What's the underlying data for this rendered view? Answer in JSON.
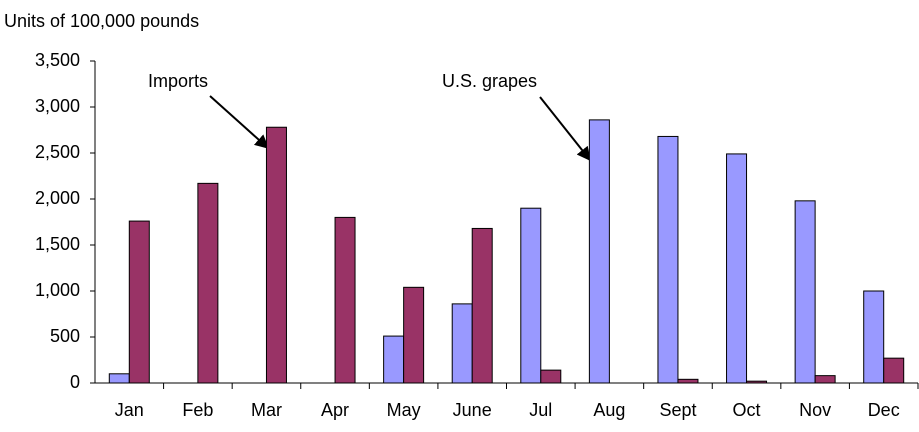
{
  "chart_data": {
    "type": "bar",
    "y_label": "Units of 100,000 pounds",
    "annotations": [
      "Imports",
      "U.S. grapes"
    ],
    "categories": [
      "Jan",
      "Feb",
      "Mar",
      "Apr",
      "May",
      "June",
      "Jul",
      "Aug",
      "Sept",
      "Oct",
      "Nov",
      "Dec"
    ],
    "series": [
      {
        "name": "U.S. grapes",
        "color": "#9999ff",
        "values": [
          100,
          0,
          0,
          0,
          510,
          860,
          1900,
          2860,
          2680,
          2490,
          1980,
          1000
        ]
      },
      {
        "name": "Imports",
        "color": "#993366",
        "values": [
          1760,
          2170,
          2780,
          1800,
          1040,
          1680,
          140,
          0,
          40,
          20,
          80,
          270
        ]
      }
    ],
    "ylim": [
      0,
      3500
    ],
    "yticks": [
      0,
      {
        "value": 500,
        "label": "500"
      },
      {
        "value": 1000,
        "label": "1,000"
      },
      {
        "value": 1500,
        "label": "1,500"
      },
      {
        "value": 2000,
        "label": "2,000"
      },
      {
        "value": 2500,
        "label": "2,500"
      },
      {
        "value": 3000,
        "label": "3,000"
      },
      {
        "value": 3500,
        "label": "3,500"
      }
    ],
    "grid": false
  }
}
